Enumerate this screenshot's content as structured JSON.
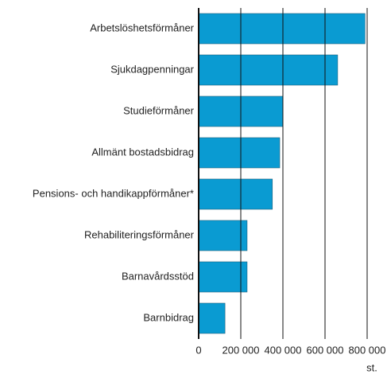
{
  "chart_data": {
    "type": "barh",
    "categories": [
      "Arbetslöshetsförmåner",
      "Sjukdagpenningar",
      "Studieförmåner",
      "Allmänt bostadsbidrag",
      "Pensions- och handikappförmåner*",
      "Rehabiliteringsförmåner",
      "Barnavårdsstöd",
      "Barnbidrag"
    ],
    "values": [
      790000,
      660000,
      400000,
      385000,
      350000,
      230000,
      230000,
      125000
    ],
    "color": "#0a9bd2",
    "xlim": [
      0,
      800000
    ],
    "xticks": [
      0,
      {
        "value": 200000,
        "label": "200 000"
      },
      {
        "value": 400000,
        "label": "400 000"
      },
      {
        "value": 600000,
        "label": "600 000"
      },
      {
        "value": 800000,
        "label": "800 000"
      }
    ],
    "x_label": "st.",
    "grid": true
  }
}
